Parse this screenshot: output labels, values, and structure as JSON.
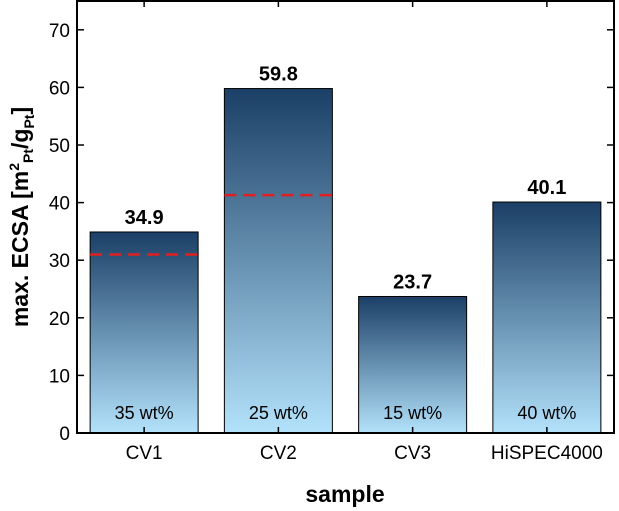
{
  "chart_data": {
    "type": "bar",
    "title": "",
    "xlabel": "sample",
    "ylabel": {
      "main": "max. ECSA [m",
      "sup": "2",
      "sub1": "Pt",
      "mid": "/g",
      "sub2": "Pt",
      "end": "]"
    },
    "ylim": [
      0,
      75
    ],
    "yticks": [
      0,
      10,
      20,
      30,
      40,
      50,
      60,
      70
    ],
    "categories": [
      "CV1",
      "CV2",
      "CV3",
      "HiSPEC4000"
    ],
    "values": [
      34.9,
      59.8,
      23.7,
      40.1
    ],
    "value_labels": [
      "34.9",
      "59.8",
      "23.7",
      "40.1"
    ],
    "annotations": [
      "35 wt%",
      "25 wt%",
      "15 wt%",
      "40 wt%"
    ],
    "reference_lines": [
      {
        "category": "CV1",
        "value": 31.0
      },
      {
        "category": "CV2",
        "value": 41.3
      }
    ],
    "colors": {
      "bar_top": "#1b3f66",
      "bar_bottom": "#b3e2fb",
      "reference_line": "#e02020",
      "bar_stroke": "#000000"
    },
    "grid": false,
    "legend": "none"
  }
}
